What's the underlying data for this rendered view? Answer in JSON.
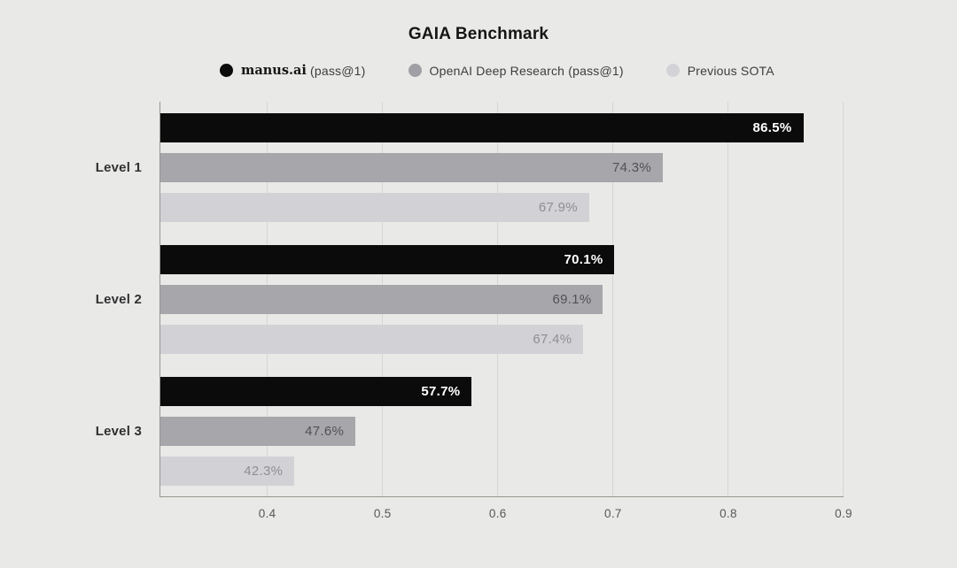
{
  "page": {
    "background": "#e9e9e7"
  },
  "title": "GAIA Benchmark",
  "legend": {
    "items": [
      {
        "brand": "manus.ai",
        "text": " (pass@1)",
        "swatch": "#0b0b0b"
      },
      {
        "brand": "",
        "text": "OpenAI Deep Research (pass@1)",
        "swatch": "#9f9fa5"
      },
      {
        "brand": "",
        "text": "Previous SOTA",
        "swatch": "#d3d3d7"
      }
    ]
  },
  "chart_data": {
    "type": "bar",
    "orientation": "horizontal",
    "title": "GAIA Benchmark",
    "categories": [
      "Level 1",
      "Level 2",
      "Level 3"
    ],
    "series": [
      {
        "name": "manus.ai (pass@1)",
        "color": "#0b0b0b",
        "values": [
          0.865,
          0.701,
          0.577
        ],
        "labels": [
          "86.5%",
          "70.1%",
          "57.7%"
        ],
        "label_color": "#ffffff",
        "label_bold": true
      },
      {
        "name": "OpenAI Deep Research (pass@1)",
        "color": "#a6a6ab",
        "values": [
          0.743,
          0.691,
          0.476
        ],
        "labels": [
          "74.3%",
          "69.1%",
          "47.6%"
        ],
        "label_color": "#525256",
        "label_bold": false
      },
      {
        "name": "Previous SOTA",
        "color": "#d2d2d6",
        "values": [
          0.679,
          0.674,
          0.423
        ],
        "labels": [
          "67.9%",
          "67.4%",
          "42.3%"
        ],
        "label_color": "#8f8f93",
        "label_bold": false
      }
    ],
    "x_axis": {
      "min": 0.3065,
      "max": 0.9,
      "ticks": [
        0.4,
        0.5,
        0.6,
        0.7,
        0.8,
        0.9
      ],
      "tick_labels": [
        "0.4",
        "0.5",
        "0.6",
        "0.7",
        "0.8",
        "0.9"
      ]
    },
    "grid": "vertical",
    "legend_position": "top"
  }
}
